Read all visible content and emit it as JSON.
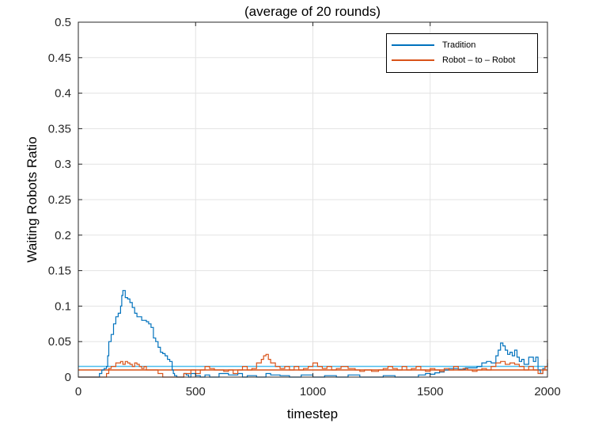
{
  "chart_data": {
    "type": "line",
    "title": "(average of 20 rounds)",
    "xlabel": "timestep",
    "ylabel": "Waiting Robots Ratio",
    "xlim": [
      0,
      2000
    ],
    "ylim": [
      0,
      0.5
    ],
    "xticks": [
      0,
      500,
      1000,
      1500,
      2000
    ],
    "xtick_labels": [
      "0",
      "500",
      "1000",
      "1500",
      "2000"
    ],
    "yticks": [
      0,
      0.05,
      0.1,
      0.15,
      0.2,
      0.25,
      0.3,
      0.35,
      0.4,
      0.45,
      0.5
    ],
    "ytick_labels": [
      "0",
      "0.05",
      "0.1",
      "0.15",
      "0.2",
      "0.25",
      "0.3",
      "0.35",
      "0.4",
      "0.45",
      "0.5"
    ],
    "grid": true,
    "legend_position": "top-right",
    "series": [
      {
        "name": "Tradition",
        "color": "#0072bd",
        "points": [
          [
            0,
            0
          ],
          [
            80,
            0
          ],
          [
            90,
            0.005
          ],
          [
            100,
            0.01
          ],
          [
            110,
            0.012
          ],
          [
            120,
            0.015
          ],
          [
            125,
            0.03
          ],
          [
            130,
            0.05
          ],
          [
            140,
            0.06
          ],
          [
            150,
            0.075
          ],
          [
            160,
            0.085
          ],
          [
            170,
            0.09
          ],
          [
            180,
            0.1
          ],
          [
            185,
            0.115
          ],
          [
            190,
            0.122
          ],
          [
            200,
            0.112
          ],
          [
            210,
            0.11
          ],
          [
            220,
            0.105
          ],
          [
            230,
            0.098
          ],
          [
            240,
            0.09
          ],
          [
            250,
            0.085
          ],
          [
            260,
            0.085
          ],
          [
            270,
            0.08
          ],
          [
            280,
            0.08
          ],
          [
            290,
            0.078
          ],
          [
            300,
            0.075
          ],
          [
            310,
            0.07
          ],
          [
            320,
            0.055
          ],
          [
            330,
            0.05
          ],
          [
            340,
            0.042
          ],
          [
            350,
            0.035
          ],
          [
            360,
            0.033
          ],
          [
            370,
            0.03
          ],
          [
            380,
            0.025
          ],
          [
            390,
            0.022
          ],
          [
            400,
            0.01
          ],
          [
            405,
            0.005
          ],
          [
            410,
            0.002
          ],
          [
            420,
            0
          ],
          [
            440,
            0
          ],
          [
            450,
            0.005
          ],
          [
            460,
            0.003
          ],
          [
            470,
            0
          ],
          [
            480,
            0.005
          ],
          [
            500,
            0.002
          ],
          [
            520,
            0
          ],
          [
            540,
            0.003
          ],
          [
            560,
            0
          ],
          [
            600,
            0.005
          ],
          [
            640,
            0.003
          ],
          [
            680,
            0.005
          ],
          [
            700,
            0
          ],
          [
            720,
            0.002
          ],
          [
            760,
            0
          ],
          [
            800,
            0.005
          ],
          [
            820,
            0.003
          ],
          [
            860,
            0.002
          ],
          [
            900,
            0
          ],
          [
            950,
            0.003
          ],
          [
            1000,
            0
          ],
          [
            1050,
            0.002
          ],
          [
            1100,
            0
          ],
          [
            1150,
            0.003
          ],
          [
            1200,
            0
          ],
          [
            1250,
            0
          ],
          [
            1300,
            0.002
          ],
          [
            1350,
            0
          ],
          [
            1400,
            0
          ],
          [
            1450,
            0.003
          ],
          [
            1480,
            0.005
          ],
          [
            1500,
            0.004
          ],
          [
            1520,
            0.006
          ],
          [
            1540,
            0.007
          ],
          [
            1560,
            0.01
          ],
          [
            1580,
            0.012
          ],
          [
            1600,
            0.012
          ],
          [
            1620,
            0.011
          ],
          [
            1650,
            0.013
          ],
          [
            1700,
            0.015
          ],
          [
            1720,
            0.02
          ],
          [
            1740,
            0.022
          ],
          [
            1760,
            0.02
          ],
          [
            1780,
            0.03
          ],
          [
            1790,
            0.038
          ],
          [
            1800,
            0.048
          ],
          [
            1810,
            0.044
          ],
          [
            1820,
            0.038
          ],
          [
            1830,
            0.032
          ],
          [
            1840,
            0.035
          ],
          [
            1850,
            0.03
          ],
          [
            1860,
            0.038
          ],
          [
            1870,
            0.028
          ],
          [
            1880,
            0.022
          ],
          [
            1890,
            0.025
          ],
          [
            1900,
            0.018
          ],
          [
            1920,
            0.028
          ],
          [
            1940,
            0.022
          ],
          [
            1950,
            0.028
          ],
          [
            1960,
            0.01
          ],
          [
            1970,
            0.005
          ],
          [
            1980,
            0.012
          ],
          [
            1990,
            0.015
          ],
          [
            2000,
            0.02
          ]
        ]
      },
      {
        "name": "Robot – to – Robot",
        "color": "#d95319",
        "points": [
          [
            0,
            0
          ],
          [
            80,
            0
          ],
          [
            100,
            0
          ],
          [
            120,
            0.005
          ],
          [
            130,
            0.012
          ],
          [
            140,
            0.015
          ],
          [
            150,
            0.015
          ],
          [
            160,
            0.02
          ],
          [
            170,
            0.02
          ],
          [
            180,
            0.022
          ],
          [
            190,
            0.018
          ],
          [
            200,
            0.022
          ],
          [
            210,
            0.02
          ],
          [
            220,
            0.018
          ],
          [
            230,
            0.015
          ],
          [
            240,
            0.02
          ],
          [
            250,
            0.018
          ],
          [
            260,
            0.015
          ],
          [
            270,
            0.012
          ],
          [
            280,
            0.015
          ],
          [
            290,
            0.01
          ],
          [
            300,
            0.01
          ],
          [
            320,
            0.01
          ],
          [
            340,
            0.005
          ],
          [
            360,
            0
          ],
          [
            400,
            0
          ],
          [
            420,
            0
          ],
          [
            450,
            0.005
          ],
          [
            480,
            0.01
          ],
          [
            500,
            0.005
          ],
          [
            520,
            0.01
          ],
          [
            540,
            0.015
          ],
          [
            560,
            0.012
          ],
          [
            580,
            0.01
          ],
          [
            600,
            0.01
          ],
          [
            620,
            0.008
          ],
          [
            640,
            0.01
          ],
          [
            660,
            0.005
          ],
          [
            680,
            0.01
          ],
          [
            700,
            0.015
          ],
          [
            720,
            0.01
          ],
          [
            740,
            0.012
          ],
          [
            760,
            0.02
          ],
          [
            780,
            0.025
          ],
          [
            790,
            0.03
          ],
          [
            800,
            0.032
          ],
          [
            810,
            0.025
          ],
          [
            820,
            0.02
          ],
          [
            840,
            0.015
          ],
          [
            860,
            0.012
          ],
          [
            880,
            0.015
          ],
          [
            900,
            0.01
          ],
          [
            920,
            0.015
          ],
          [
            940,
            0.01
          ],
          [
            960,
            0.012
          ],
          [
            980,
            0.015
          ],
          [
            1000,
            0.02
          ],
          [
            1020,
            0.015
          ],
          [
            1040,
            0.012
          ],
          [
            1060,
            0.015
          ],
          [
            1080,
            0.01
          ],
          [
            1100,
            0.012
          ],
          [
            1120,
            0.015
          ],
          [
            1150,
            0.012
          ],
          [
            1180,
            0.01
          ],
          [
            1200,
            0.008
          ],
          [
            1220,
            0.01
          ],
          [
            1250,
            0.008
          ],
          [
            1280,
            0.01
          ],
          [
            1300,
            0.012
          ],
          [
            1320,
            0.015
          ],
          [
            1340,
            0.012
          ],
          [
            1360,
            0.01
          ],
          [
            1380,
            0.015
          ],
          [
            1400,
            0.01
          ],
          [
            1420,
            0.012
          ],
          [
            1440,
            0.015
          ],
          [
            1460,
            0.01
          ],
          [
            1480,
            0.008
          ],
          [
            1500,
            0.012
          ],
          [
            1520,
            0.01
          ],
          [
            1540,
            0.008
          ],
          [
            1560,
            0.012
          ],
          [
            1580,
            0.01
          ],
          [
            1600,
            0.015
          ],
          [
            1620,
            0.01
          ],
          [
            1640,
            0.012
          ],
          [
            1660,
            0.01
          ],
          [
            1680,
            0.008
          ],
          [
            1700,
            0.01
          ],
          [
            1720,
            0.012
          ],
          [
            1740,
            0.01
          ],
          [
            1760,
            0.015
          ],
          [
            1780,
            0.02
          ],
          [
            1800,
            0.022
          ],
          [
            1820,
            0.018
          ],
          [
            1840,
            0.02
          ],
          [
            1860,
            0.018
          ],
          [
            1880,
            0.015
          ],
          [
            1900,
            0.01
          ],
          [
            1920,
            0.015
          ],
          [
            1940,
            0.01
          ],
          [
            1960,
            0.005
          ],
          [
            1980,
            0.01
          ],
          [
            1990,
            0.015
          ],
          [
            2000,
            0.025
          ]
        ]
      }
    ],
    "reference_lines": [
      {
        "y": 0.015,
        "color": "#4dbeee"
      },
      {
        "y": 0.01,
        "color": "#d95319"
      }
    ]
  }
}
